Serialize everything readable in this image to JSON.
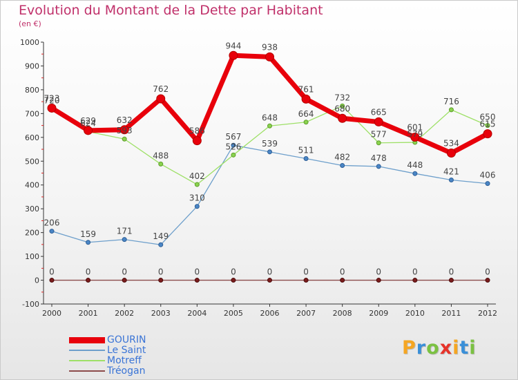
{
  "title": "Evolution du Montant de la Dette par Habitant",
  "subtitle": "(en €)",
  "logo": {
    "text": "Proxiti",
    "colors": [
      "#f5a623",
      "#3a8fd8",
      "#7bc142",
      "#e6332a",
      "#f5a623",
      "#3a8fd8",
      "#7bc142"
    ]
  },
  "chart_data": {
    "type": "line",
    "x": [
      "2000",
      "2001",
      "2002",
      "2003",
      "2004",
      "2005",
      "2006",
      "2007",
      "2008",
      "2009",
      "2010",
      "2011",
      "2012"
    ],
    "ylim": [
      -100,
      1000
    ],
    "yticks": [
      -100,
      0,
      100,
      200,
      300,
      400,
      500,
      600,
      700,
      800,
      900,
      1000
    ],
    "grid": false,
    "legend_position": "bottom-left",
    "series": [
      {
        "name": "GOURIN",
        "color": "#e8000b",
        "values": [
          723,
          629,
          632,
          762,
          586,
          944,
          938,
          761,
          680,
          665,
          601,
          534,
          615
        ],
        "labels": [
          "723",
          "629",
          "632",
          "762",
          "586",
          "944",
          "938",
          "761",
          "680",
          "665",
          "601",
          "534",
          "615"
        ]
      },
      {
        "name": "Le Saint",
        "color": "#6d9fcb",
        "values": [
          206,
          159,
          171,
          149,
          310,
          567,
          539,
          511,
          482,
          478,
          448,
          421,
          406
        ],
        "labels": [
          "206",
          "159",
          "171",
          "149",
          "310",
          "567",
          "539",
          "511",
          "482",
          "478",
          "448",
          "421",
          "406"
        ]
      },
      {
        "name": "Motreff",
        "color": "#9ee067",
        "values": [
          720,
          624,
          593,
          488,
          402,
          526,
          648,
          664,
          732,
          577,
          579,
          716,
          650
        ],
        "labels": [
          "720",
          "624",
          "593",
          "488",
          "402",
          "526",
          "648",
          "664",
          "732",
          "577",
          "579",
          "716",
          "650"
        ]
      },
      {
        "name": "Tréogan",
        "color": "#8b4a4a",
        "values": [
          0,
          0,
          0,
          0,
          0,
          0,
          0,
          0,
          0,
          0,
          0,
          0,
          0
        ],
        "labels": [
          "0",
          "0",
          "0",
          "0",
          "0",
          "0",
          "0",
          "0",
          "0",
          "0",
          "0",
          "0",
          "0"
        ]
      }
    ]
  }
}
